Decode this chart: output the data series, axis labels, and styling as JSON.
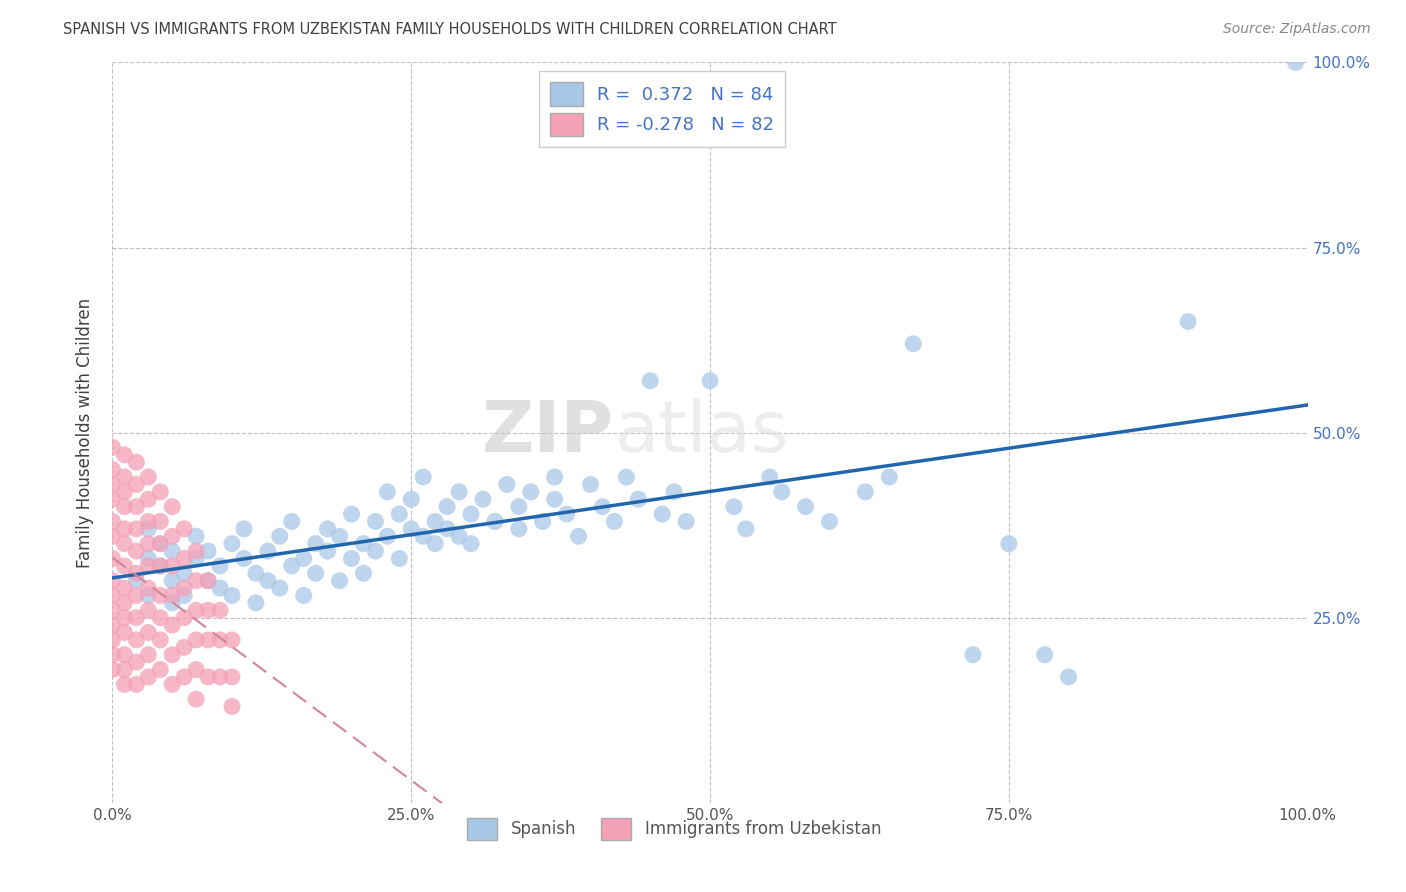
{
  "title": "SPANISH VS IMMIGRANTS FROM UZBEKISTAN FAMILY HOUSEHOLDS WITH CHILDREN CORRELATION CHART",
  "source": "Source: ZipAtlas.com",
  "ylabel": "Family Households with Children",
  "xlim": [
    0.0,
    1.0
  ],
  "ylim": [
    0.0,
    1.0
  ],
  "xticks": [
    0.0,
    0.25,
    0.5,
    0.75,
    1.0
  ],
  "yticks": [
    0.0,
    0.25,
    0.5,
    0.75,
    1.0
  ],
  "xticklabels": [
    "0.0%",
    "25.0%",
    "50.0%",
    "75.0%",
    "100.0%"
  ],
  "yticklabels_right": [
    "100.0%",
    "75.0%",
    "50.0%",
    "25.0%",
    ""
  ],
  "r_spanish": 0.372,
  "n_spanish": 84,
  "r_uzbek": -0.278,
  "n_uzbek": 82,
  "spanish_color": "#a8c8e8",
  "uzbek_color": "#f4a0b8",
  "spanish_line_color": "#2166ac",
  "uzbek_line_color": "#d4849a",
  "legend_labels": [
    "Spanish",
    "Immigrants from Uzbekistan"
  ],
  "watermark_zip": "ZIP",
  "watermark_atlas": "atlas",
  "background_color": "#ffffff",
  "grid_color": "#bbbbbb",
  "title_color": "#404040",
  "spanish_scatter": [
    [
      0.02,
      0.3
    ],
    [
      0.03,
      0.33
    ],
    [
      0.03,
      0.28
    ],
    [
      0.03,
      0.37
    ],
    [
      0.04,
      0.32
    ],
    [
      0.04,
      0.35
    ],
    [
      0.05,
      0.3
    ],
    [
      0.05,
      0.34
    ],
    [
      0.05,
      0.27
    ],
    [
      0.06,
      0.31
    ],
    [
      0.06,
      0.28
    ],
    [
      0.07,
      0.33
    ],
    [
      0.07,
      0.36
    ],
    [
      0.08,
      0.3
    ],
    [
      0.08,
      0.34
    ],
    [
      0.09,
      0.29
    ],
    [
      0.09,
      0.32
    ],
    [
      0.1,
      0.35
    ],
    [
      0.1,
      0.28
    ],
    [
      0.11,
      0.33
    ],
    [
      0.11,
      0.37
    ],
    [
      0.12,
      0.31
    ],
    [
      0.12,
      0.27
    ],
    [
      0.13,
      0.34
    ],
    [
      0.13,
      0.3
    ],
    [
      0.14,
      0.36
    ],
    [
      0.14,
      0.29
    ],
    [
      0.15,
      0.32
    ],
    [
      0.15,
      0.38
    ],
    [
      0.16,
      0.33
    ],
    [
      0.16,
      0.28
    ],
    [
      0.17,
      0.35
    ],
    [
      0.17,
      0.31
    ],
    [
      0.18,
      0.37
    ],
    [
      0.18,
      0.34
    ],
    [
      0.19,
      0.3
    ],
    [
      0.19,
      0.36
    ],
    [
      0.2,
      0.33
    ],
    [
      0.2,
      0.39
    ],
    [
      0.21,
      0.35
    ],
    [
      0.21,
      0.31
    ],
    [
      0.22,
      0.38
    ],
    [
      0.22,
      0.34
    ],
    [
      0.23,
      0.36
    ],
    [
      0.23,
      0.42
    ],
    [
      0.24,
      0.39
    ],
    [
      0.24,
      0.33
    ],
    [
      0.25,
      0.37
    ],
    [
      0.25,
      0.41
    ],
    [
      0.26,
      0.36
    ],
    [
      0.26,
      0.44
    ],
    [
      0.27,
      0.38
    ],
    [
      0.27,
      0.35
    ],
    [
      0.28,
      0.4
    ],
    [
      0.28,
      0.37
    ],
    [
      0.29,
      0.42
    ],
    [
      0.29,
      0.36
    ],
    [
      0.3,
      0.39
    ],
    [
      0.3,
      0.35
    ],
    [
      0.31,
      0.41
    ],
    [
      0.32,
      0.38
    ],
    [
      0.33,
      0.43
    ],
    [
      0.34,
      0.4
    ],
    [
      0.34,
      0.37
    ],
    [
      0.35,
      0.42
    ],
    [
      0.36,
      0.38
    ],
    [
      0.37,
      0.44
    ],
    [
      0.37,
      0.41
    ],
    [
      0.38,
      0.39
    ],
    [
      0.39,
      0.36
    ],
    [
      0.4,
      0.43
    ],
    [
      0.41,
      0.4
    ],
    [
      0.42,
      0.38
    ],
    [
      0.43,
      0.44
    ],
    [
      0.44,
      0.41
    ],
    [
      0.45,
      0.57
    ],
    [
      0.46,
      0.39
    ],
    [
      0.47,
      0.42
    ],
    [
      0.48,
      0.38
    ],
    [
      0.5,
      0.57
    ],
    [
      0.52,
      0.4
    ],
    [
      0.53,
      0.37
    ],
    [
      0.55,
      0.44
    ],
    [
      0.56,
      0.42
    ],
    [
      0.58,
      0.4
    ],
    [
      0.6,
      0.38
    ],
    [
      0.63,
      0.42
    ],
    [
      0.65,
      0.44
    ],
    [
      0.67,
      0.62
    ],
    [
      0.72,
      0.2
    ],
    [
      0.75,
      0.35
    ],
    [
      0.78,
      0.2
    ],
    [
      0.8,
      0.17
    ],
    [
      0.9,
      0.65
    ],
    [
      0.99,
      1.0
    ]
  ],
  "uzbek_scatter": [
    [
      0.0,
      0.48
    ],
    [
      0.0,
      0.45
    ],
    [
      0.0,
      0.43
    ],
    [
      0.0,
      0.41
    ],
    [
      0.0,
      0.38
    ],
    [
      0.0,
      0.36
    ],
    [
      0.0,
      0.33
    ],
    [
      0.0,
      0.3
    ],
    [
      0.0,
      0.28
    ],
    [
      0.0,
      0.26
    ],
    [
      0.0,
      0.24
    ],
    [
      0.0,
      0.22
    ],
    [
      0.0,
      0.2
    ],
    [
      0.0,
      0.18
    ],
    [
      0.01,
      0.47
    ],
    [
      0.01,
      0.44
    ],
    [
      0.01,
      0.42
    ],
    [
      0.01,
      0.4
    ],
    [
      0.01,
      0.37
    ],
    [
      0.01,
      0.35
    ],
    [
      0.01,
      0.32
    ],
    [
      0.01,
      0.29
    ],
    [
      0.01,
      0.27
    ],
    [
      0.01,
      0.25
    ],
    [
      0.01,
      0.23
    ],
    [
      0.01,
      0.2
    ],
    [
      0.01,
      0.18
    ],
    [
      0.01,
      0.16
    ],
    [
      0.02,
      0.46
    ],
    [
      0.02,
      0.43
    ],
    [
      0.02,
      0.4
    ],
    [
      0.02,
      0.37
    ],
    [
      0.02,
      0.34
    ],
    [
      0.02,
      0.31
    ],
    [
      0.02,
      0.28
    ],
    [
      0.02,
      0.25
    ],
    [
      0.02,
      0.22
    ],
    [
      0.02,
      0.19
    ],
    [
      0.02,
      0.16
    ],
    [
      0.03,
      0.44
    ],
    [
      0.03,
      0.41
    ],
    [
      0.03,
      0.38
    ],
    [
      0.03,
      0.35
    ],
    [
      0.03,
      0.32
    ],
    [
      0.03,
      0.29
    ],
    [
      0.03,
      0.26
    ],
    [
      0.03,
      0.23
    ],
    [
      0.03,
      0.2
    ],
    [
      0.03,
      0.17
    ],
    [
      0.04,
      0.42
    ],
    [
      0.04,
      0.38
    ],
    [
      0.04,
      0.35
    ],
    [
      0.04,
      0.32
    ],
    [
      0.04,
      0.28
    ],
    [
      0.04,
      0.25
    ],
    [
      0.04,
      0.22
    ],
    [
      0.04,
      0.18
    ],
    [
      0.05,
      0.4
    ],
    [
      0.05,
      0.36
    ],
    [
      0.05,
      0.32
    ],
    [
      0.05,
      0.28
    ],
    [
      0.05,
      0.24
    ],
    [
      0.05,
      0.2
    ],
    [
      0.05,
      0.16
    ],
    [
      0.06,
      0.37
    ],
    [
      0.06,
      0.33
    ],
    [
      0.06,
      0.29
    ],
    [
      0.06,
      0.25
    ],
    [
      0.06,
      0.21
    ],
    [
      0.06,
      0.17
    ],
    [
      0.07,
      0.34
    ],
    [
      0.07,
      0.3
    ],
    [
      0.07,
      0.26
    ],
    [
      0.07,
      0.22
    ],
    [
      0.07,
      0.18
    ],
    [
      0.07,
      0.14
    ],
    [
      0.08,
      0.3
    ],
    [
      0.08,
      0.26
    ],
    [
      0.08,
      0.22
    ],
    [
      0.08,
      0.17
    ],
    [
      0.09,
      0.26
    ],
    [
      0.09,
      0.22
    ],
    [
      0.09,
      0.17
    ],
    [
      0.1,
      0.22
    ],
    [
      0.1,
      0.17
    ],
    [
      0.1,
      0.13
    ]
  ]
}
